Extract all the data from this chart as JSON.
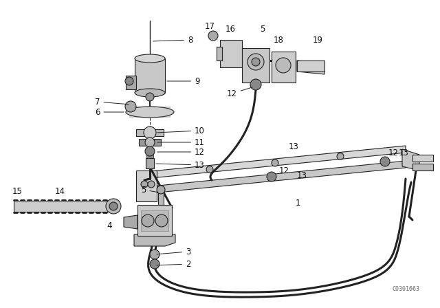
{
  "bg_color": "#ffffff",
  "line_color": "#222222",
  "text_color": "#111111",
  "watermark": "C0301663",
  "figsize": [
    6.4,
    4.48
  ],
  "dpi": 100,
  "label_fs": 8.5
}
